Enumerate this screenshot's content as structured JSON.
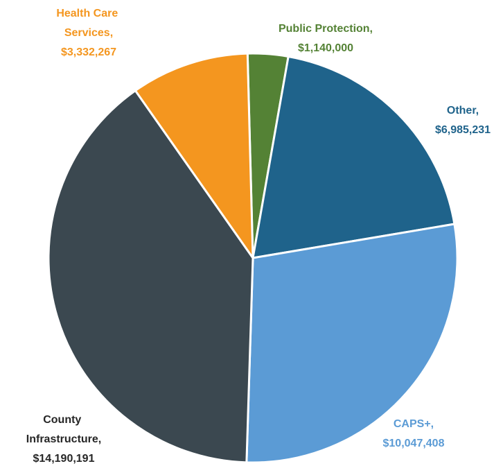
{
  "chart_data": {
    "type": "pie",
    "categories": [
      "Public Protection,",
      "Other,",
      "CAPS+,",
      "County Infrastructure,",
      "Health Care Services,"
    ],
    "values": [
      1140000,
      6985231,
      10047408,
      14190191,
      3332267
    ],
    "value_labels": [
      "$1,140,000",
      "$6,985,231",
      "$10,047,408",
      "$14,190,191",
      "$3,332,267"
    ],
    "colors": [
      "#548235",
      "#1f638b",
      "#5b9bd5",
      "#3b4850",
      "#f4961f"
    ],
    "label_colors": [
      "#548235",
      "#1f638b",
      "#5b9bd5",
      "#262626",
      "#f4961f"
    ]
  }
}
